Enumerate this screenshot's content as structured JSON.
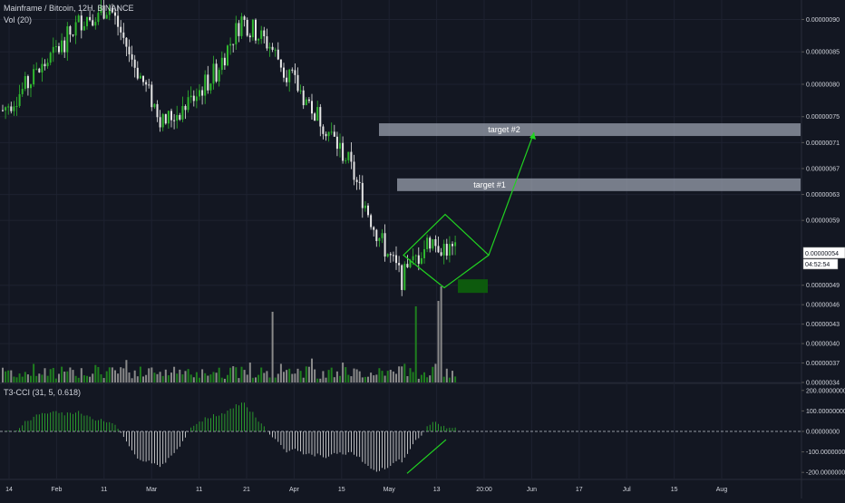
{
  "header": {
    "symbol_line": "Mainframe / Bitcoin, 12H, BINANCE",
    "volume_label": "Vol (20)",
    "indicator_label": "T3-CCI (31, 5, 0.618)"
  },
  "colors": {
    "background": "#131722",
    "up": "#2fb82f",
    "down": "#e6e6e6",
    "grid": "#1e2230",
    "axis_text": "#d1d4dc",
    "annotation": "#21d321",
    "target_band": "#9aa0ad",
    "stop_box": "#0d5a0d"
  },
  "chart_data": [
    {
      "type": "candlestick",
      "title": "Mainframe / Bitcoin, 12H, BINANCE",
      "y_ticks": [
        "0.00000090",
        "0.00000085",
        "0.00000080",
        "0.00000075",
        "0.00000071",
        "0.00000067",
        "0.00000063",
        "0.00000059",
        "0.00000049",
        "0.00000046",
        "0.00000043",
        "0.00000040",
        "0.00000037",
        "0.00000034"
      ],
      "y_range": [
        3.4e-07,
        9.3e-07
      ],
      "last_price_label": "0.00000054",
      "countdown_label": "04:52:54",
      "x_ticks": [
        "14",
        "Feb",
        "11",
        "Mar",
        "11",
        "21",
        "Apr",
        "15",
        "May",
        "13",
        "20:00",
        "Jun",
        "17",
        "Jul",
        "15",
        "Aug"
      ],
      "price_path": [
        {
          "date": "Jan 10",
          "close": 7.6e-07
        },
        {
          "date": "Jan 20",
          "close": 8e-07
        },
        {
          "date": "Jan 28",
          "close": 8.5e-07
        },
        {
          "date": "Feb 5",
          "close": 9e-07
        },
        {
          "date": "Feb 12",
          "close": 9.2e-07
        },
        {
          "date": "Feb 20",
          "close": 8.3e-07
        },
        {
          "date": "Mar 1",
          "close": 7.4e-07
        },
        {
          "date": "Mar 8",
          "close": 7.7e-07
        },
        {
          "date": "Mar 15",
          "close": 8.2e-07
        },
        {
          "date": "Mar 20",
          "close": 9e-07
        },
        {
          "date": "Mar 28",
          "close": 8.6e-07
        },
        {
          "date": "Apr 5",
          "close": 8e-07
        },
        {
          "date": "Apr 13",
          "close": 7.4e-07
        },
        {
          "date": "Apr 20",
          "close": 6.8e-07
        },
        {
          "date": "Apr 25",
          "close": 5.7e-07
        },
        {
          "date": "Apr 30",
          "close": 5e-07
        },
        {
          "date": "May 3",
          "close": 5.6e-07
        },
        {
          "date": "May 6",
          "close": 5.4e-07
        }
      ],
      "annotations": [
        {
          "label": "target #1",
          "level": 6.45e-07
        },
        {
          "label": "target #2",
          "level": 7.3e-07
        }
      ]
    },
    {
      "type": "bar",
      "title": "Vol (20)",
      "series": [
        {
          "name": "Vol (20)"
        }
      ]
    },
    {
      "type": "area",
      "title": "T3-CCI (31, 5, 0.618)",
      "y_ticks": [
        "200.00000000",
        "100.00000000",
        "0.00000000",
        "-100.00000000",
        "-200.00000000"
      ],
      "y_range": [
        -230,
        230
      ]
    }
  ]
}
